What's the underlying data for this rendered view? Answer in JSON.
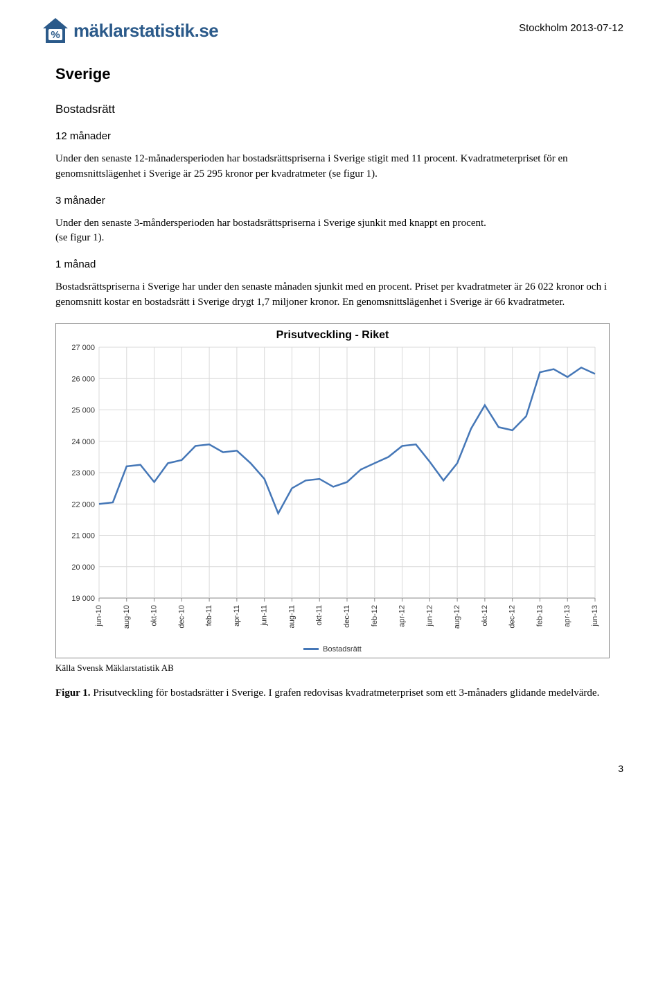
{
  "header": {
    "logo_text": "mäklarstatistik.se",
    "date": "Stockholm 2013-07-12"
  },
  "title": "Sverige",
  "subtitle": "Bostadsrätt",
  "sections": {
    "s12": {
      "heading": "12 månader",
      "body": "Under den senaste 12-månadersperioden har bostadsrättspriserna i Sverige stigit med 11 procent. Kvadratmeterpriset för en genomsnittslägenhet i Sverige är 25 295 kronor per kvadratmeter (se figur 1)."
    },
    "s3": {
      "heading": "3 månader",
      "body": "Under den senaste 3-måndersperioden har bostadsrättspriserna i Sverige sjunkit med knappt en procent.\n(se figur 1)."
    },
    "s1": {
      "heading": "1 månad",
      "body": "Bostadsrättspriserna i Sverige har under den senaste månaden sjunkit med en procent. Priset per kvadratmeter är 26 022 kronor och i genomsnitt kostar en bostadsrätt i Sverige drygt 1,7 miljoner kronor. En genomsnittslägenhet i Sverige är 66 kvadratmeter."
    }
  },
  "chart": {
    "type": "line",
    "title": "Prisutveckling - Riket",
    "y_unit": "kr/kvm",
    "series_name": "Bostadsrätt",
    "series_color": "#4577b7",
    "grid_color": "#d9d9d9",
    "axis_color": "#888888",
    "background_color": "#ffffff",
    "title_fontsize": 16,
    "label_fontsize": 11,
    "line_width": 2.5,
    "ylim": [
      19000,
      27000
    ],
    "ytick_step": 1000,
    "yticks": [
      19000,
      20000,
      21000,
      22000,
      23000,
      24000,
      25000,
      26000,
      27000
    ],
    "ytick_labels": [
      "19 000",
      "20 000",
      "21 000",
      "22 000",
      "23 000",
      "24 000",
      "25 000",
      "26 000",
      "27 000"
    ],
    "x_labels": [
      "jun-10",
      "aug-10",
      "okt-10",
      "dec-10",
      "feb-11",
      "apr-11",
      "jun-11",
      "aug-11",
      "okt-11",
      "dec-11",
      "feb-12",
      "apr-12",
      "jun-12",
      "aug-12",
      "okt-12",
      "dec-12",
      "feb-13",
      "apr-13",
      "jun-13"
    ],
    "points": [
      {
        "x": "jun-10",
        "y": 22000
      },
      {
        "x": "jul-10",
        "y": 22050
      },
      {
        "x": "aug-10",
        "y": 23200
      },
      {
        "x": "sep-10",
        "y": 23250
      },
      {
        "x": "okt-10",
        "y": 22700
      },
      {
        "x": "nov-10",
        "y": 23300
      },
      {
        "x": "dec-10",
        "y": 23400
      },
      {
        "x": "jan-11",
        "y": 23850
      },
      {
        "x": "feb-11",
        "y": 23900
      },
      {
        "x": "mar-11",
        "y": 23650
      },
      {
        "x": "apr-11",
        "y": 23700
      },
      {
        "x": "maj-11",
        "y": 23300
      },
      {
        "x": "jun-11",
        "y": 22800
      },
      {
        "x": "jul-11",
        "y": 21700
      },
      {
        "x": "aug-11",
        "y": 22500
      },
      {
        "x": "sep-11",
        "y": 22750
      },
      {
        "x": "okt-11",
        "y": 22800
      },
      {
        "x": "nov-11",
        "y": 22550
      },
      {
        "x": "dec-11",
        "y": 22700
      },
      {
        "x": "jan-12",
        "y": 23100
      },
      {
        "x": "feb-12",
        "y": 23300
      },
      {
        "x": "mar-12",
        "y": 23500
      },
      {
        "x": "apr-12",
        "y": 23850
      },
      {
        "x": "maj-12",
        "y": 23900
      },
      {
        "x": "jun-12",
        "y": 23350
      },
      {
        "x": "jul-12",
        "y": 22750
      },
      {
        "x": "aug-12",
        "y": 23300
      },
      {
        "x": "sep-12",
        "y": 24400
      },
      {
        "x": "okt-12",
        "y": 25150
      },
      {
        "x": "nov-12",
        "y": 24450
      },
      {
        "x": "dec-12",
        "y": 24350
      },
      {
        "x": "jan-13",
        "y": 24800
      },
      {
        "x": "feb-13",
        "y": 26200
      },
      {
        "x": "mar-13",
        "y": 26300
      },
      {
        "x": "apr-13",
        "y": 26050
      },
      {
        "x": "maj-13",
        "y": 26350
      },
      {
        "x": "jun-13",
        "y": 26150
      }
    ]
  },
  "source": "Källa Svensk Mäklarstatistik AB",
  "caption_strong": "Figur 1.",
  "caption_rest": " Prisutveckling för bostadsrätter i Sverige. I grafen redovisas kvadratmeterpriset som ett 3-månaders glidande medelvärde.",
  "page_number": "3",
  "logo_colors": {
    "house": "#2b5a8a",
    "percent_bg": "#ffffff",
    "percent_fg": "#2b5a8a"
  }
}
